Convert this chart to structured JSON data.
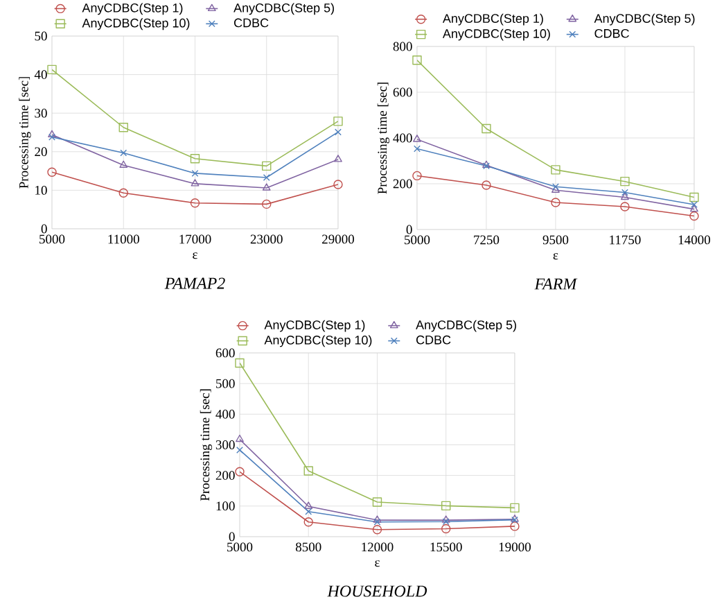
{
  "chart_data": [
    {
      "type": "line",
      "title": "PAMAP2",
      "xlabel": "ε",
      "ylabel": "Processing time [sec]",
      "categories": [
        "5000",
        "11000",
        "17000",
        "23000",
        "29000"
      ],
      "ylim": [
        0,
        50
      ],
      "yticks": [
        0,
        10,
        20,
        30,
        40,
        50
      ],
      "grid": true,
      "legend": "top",
      "series": [
        {
          "name": "AnyCDBC(Step 1)",
          "color": "#c0504d",
          "marker": "circle",
          "values": [
            14.7,
            9.3,
            6.7,
            6.4,
            11.5
          ]
        },
        {
          "name": "AnyCDBC(Step 5)",
          "color": "#8064a2",
          "marker": "triangle",
          "values": [
            24.4,
            16.5,
            11.7,
            10.6,
            18.0
          ]
        },
        {
          "name": "AnyCDBC(Step 10)",
          "color": "#9bbb59",
          "marker": "square",
          "values": [
            41.3,
            26.3,
            18.2,
            16.3,
            27.9
          ]
        },
        {
          "name": "CDBC",
          "color": "#4f81bd",
          "marker": "cross",
          "values": [
            23.8,
            19.7,
            14.4,
            13.3,
            25.1
          ]
        }
      ]
    },
    {
      "type": "line",
      "title": "FARM",
      "xlabel": "ε",
      "ylabel": "Processing time [sec]",
      "categories": [
        "5000",
        "7250",
        "9500",
        "11750",
        "14000"
      ],
      "ylim": [
        0,
        800
      ],
      "yticks": [
        0,
        200,
        400,
        600,
        800
      ],
      "grid": true,
      "legend": "top",
      "series": [
        {
          "name": "AnyCDBC(Step 1)",
          "color": "#c0504d",
          "marker": "circle",
          "values": [
            235,
            194,
            118,
            100,
            59
          ]
        },
        {
          "name": "AnyCDBC(Step 5)",
          "color": "#8064a2",
          "marker": "triangle",
          "values": [
            394,
            281,
            172,
            141,
            89
          ]
        },
        {
          "name": "AnyCDBC(Step 10)",
          "color": "#9bbb59",
          "marker": "square",
          "values": [
            740,
            441,
            261,
            210,
            141
          ]
        },
        {
          "name": "CDBC",
          "color": "#4f81bd",
          "marker": "cross",
          "values": [
            353,
            278,
            187,
            162,
            109
          ]
        }
      ]
    },
    {
      "type": "line",
      "title": "HOUSEHOLD",
      "xlabel": "ε",
      "ylabel": "Processing time [sec]",
      "categories": [
        "5000",
        "8500",
        "12000",
        "15500",
        "19000"
      ],
      "ylim": [
        0,
        600
      ],
      "yticks": [
        0,
        100,
        200,
        300,
        400,
        500,
        600
      ],
      "grid": true,
      "legend": "top",
      "series": [
        {
          "name": "AnyCDBC(Step 1)",
          "color": "#c0504d",
          "marker": "circle",
          "values": [
            212,
            48,
            23,
            26,
            34
          ]
        },
        {
          "name": "AnyCDBC(Step 5)",
          "color": "#8064a2",
          "marker": "triangle",
          "values": [
            318,
            99,
            54,
            54,
            57
          ]
        },
        {
          "name": "AnyCDBC(Step 10)",
          "color": "#9bbb59",
          "marker": "square",
          "values": [
            567,
            215,
            113,
            101,
            94
          ]
        },
        {
          "name": "CDBC",
          "color": "#4f81bd",
          "marker": "cross",
          "values": [
            283,
            82,
            48,
            49,
            55
          ]
        }
      ]
    }
  ]
}
